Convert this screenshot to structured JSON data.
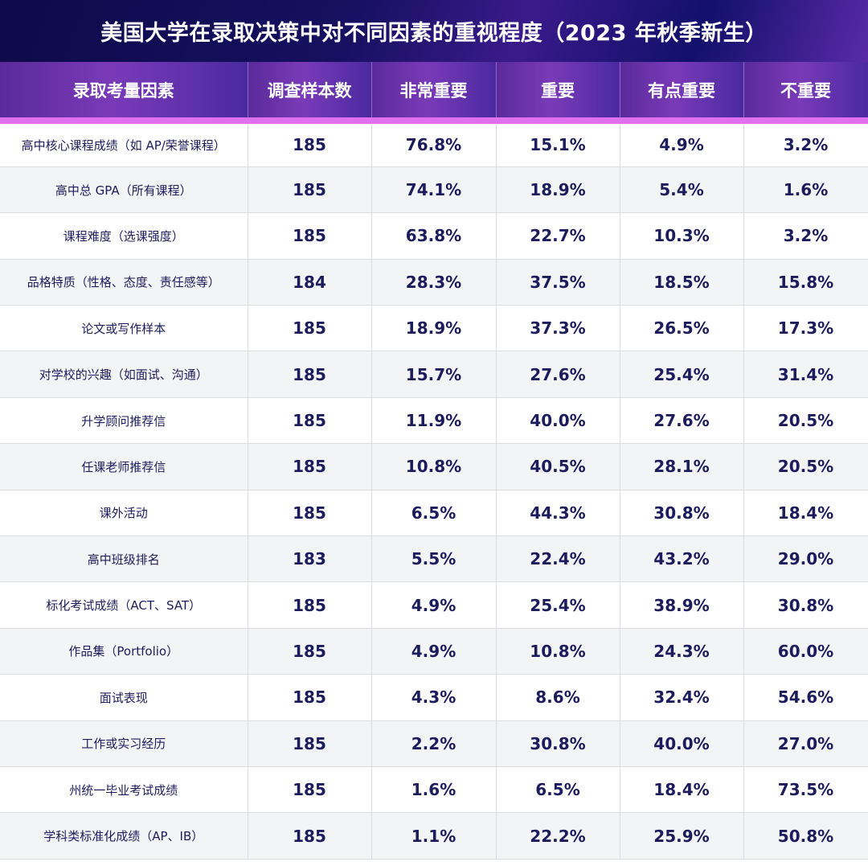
{
  "title": "美国大学在录取决策中对不同因素的重视程度（2023 年秋季新生）",
  "headers": [
    "录取考量因素",
    "调查样本数",
    "非常重要",
    "重要",
    "有点重要",
    "不重要"
  ],
  "rows": [
    [
      "高中核心课程成绩（如 AP/荣誉课程）",
      "185",
      "76.8%",
      "15.1%",
      "4.9%",
      "3.2%"
    ],
    [
      "高中总 GPA（所有课程）",
      "185",
      "74.1%",
      "18.9%",
      "5.4%",
      "1.6%"
    ],
    [
      "课程难度（选课强度）",
      "185",
      "63.8%",
      "22.7%",
      "10.3%",
      "3.2%"
    ],
    [
      "品格特质（性格、态度、责任感等）",
      "184",
      "28.3%",
      "37.5%",
      "18.5%",
      "15.8%"
    ],
    [
      "论文或写作样本",
      "185",
      "18.9%",
      "37.3%",
      "26.5%",
      "17.3%"
    ],
    [
      "对学校的兴趣（如面试、沟通）",
      "185",
      "15.7%",
      "27.6%",
      "25.4%",
      "31.4%"
    ],
    [
      "升学顾问推荐信",
      "185",
      "11.9%",
      "40.0%",
      "27.6%",
      "20.5%"
    ],
    [
      "任课老师推荐信",
      "185",
      "10.8%",
      "40.5%",
      "28.1%",
      "20.5%"
    ],
    [
      "课外活动",
      "185",
      "6.5%",
      "44.3%",
      "30.8%",
      "18.4%"
    ],
    [
      "高中班级排名",
      "183",
      "5.5%",
      "22.4%",
      "43.2%",
      "29.0%"
    ],
    [
      "标化考试成绩（ACT、SAT）",
      "185",
      "4.9%",
      "25.4%",
      "38.9%",
      "30.8%"
    ],
    [
      "作品集（Portfolio）",
      "185",
      "4.9%",
      "10.8%",
      "24.3%",
      "60.0%"
    ],
    [
      "面试表现",
      "185",
      "4.3%",
      "8.6%",
      "32.4%",
      "54.6%"
    ],
    [
      "工作或实习经历",
      "185",
      "2.2%",
      "30.8%",
      "40.0%",
      "27.0%"
    ],
    [
      "州统一毕业考试成绩",
      "185",
      "1.6%",
      "6.5%",
      "18.4%",
      "73.5%"
    ],
    [
      "学科类标准化成绩（AP、IB）",
      "185",
      "1.1%",
      "22.2%",
      "25.9%",
      "50.8%"
    ]
  ]
}
